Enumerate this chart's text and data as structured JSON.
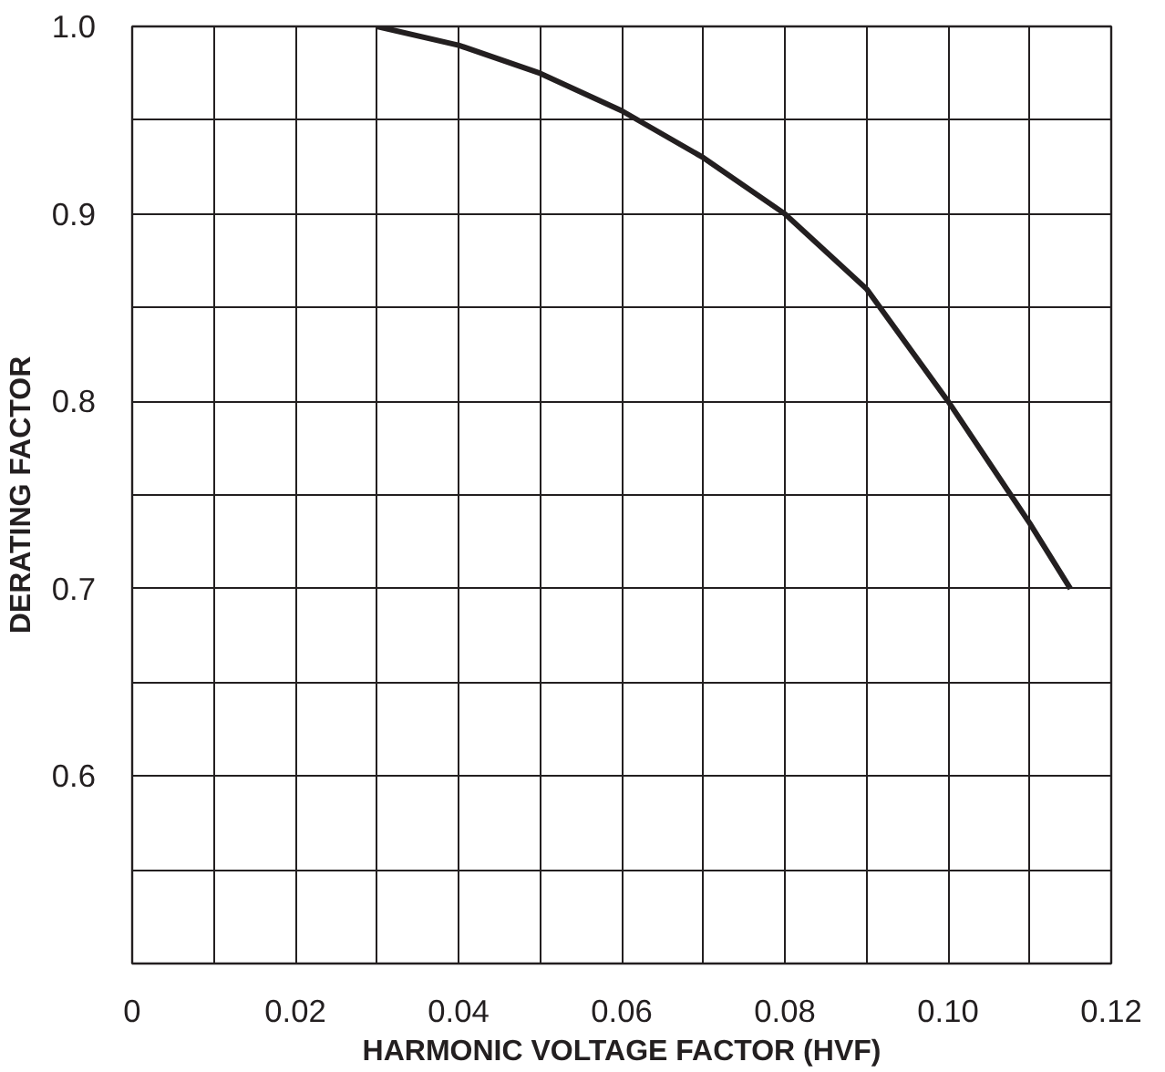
{
  "chart_data": {
    "type": "line",
    "xlabel": "HARMONIC VOLTAGE FACTOR (HVF)",
    "ylabel": "DERATING FACTOR",
    "x": [
      0.03,
      0.04,
      0.05,
      0.06,
      0.07,
      0.08,
      0.09,
      0.1,
      0.11,
      0.115
    ],
    "series": [
      {
        "color": "#231f20",
        "values": [
          1.0,
          0.99,
          0.975,
          0.955,
          0.93,
          0.9,
          0.86,
          0.8,
          0.735,
          0.7
        ]
      }
    ],
    "xlim": [
      0,
      0.12
    ],
    "ylim": [
      0.5,
      1.0
    ],
    "xticks": [
      0,
      {
        "value": 0.01,
        "label": null
      },
      0.02,
      {
        "value": 0.03,
        "label": null
      },
      0.04,
      {
        "value": 0.05,
        "label": null
      },
      0.06,
      {
        "value": 0.07,
        "label": null
      },
      0.08,
      {
        "value": 0.09,
        "label": null
      },
      {
        "value": 0.1,
        "label": "0.10"
      },
      {
        "value": 0.11,
        "label": null
      },
      0.12
    ],
    "yticks": [
      {
        "value": 0.5,
        "label": null
      },
      {
        "value": 0.55,
        "label": null
      },
      0.6,
      {
        "value": 0.65,
        "label": null
      },
      0.7,
      {
        "value": 0.75,
        "label": null
      },
      0.8,
      {
        "value": 0.85,
        "label": null
      },
      0.9,
      {
        "value": 0.95,
        "label": null
      },
      {
        "value": 1.0,
        "label": "1.0"
      }
    ],
    "grid": true,
    "line_style": "solid",
    "marker": "none"
  }
}
